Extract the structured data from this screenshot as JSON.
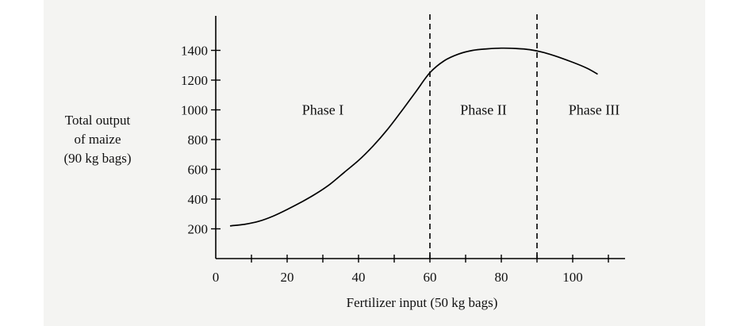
{
  "chart_data": {
    "type": "line",
    "xlabel": "Fertilizer input (50 kg bags)",
    "ylabel": [
      "Total output",
      "of maize",
      "(90 kg bags)"
    ],
    "xlim": [
      0,
      120
    ],
    "ylim": [
      0,
      1500
    ],
    "xticks": [
      0,
      20,
      40,
      60,
      80,
      100
    ],
    "yticks": [
      200,
      400,
      600,
      800,
      1000,
      1200,
      1400
    ],
    "grid": false,
    "series": [
      {
        "x": [
          4,
          8,
          12,
          16,
          20,
          24,
          28,
          32,
          36,
          40,
          44,
          48,
          52,
          56,
          60,
          64,
          68,
          72,
          76,
          80,
          84,
          88,
          92,
          96,
          100,
          104,
          107
        ],
        "y": [
          220,
          230,
          250,
          285,
          330,
          380,
          435,
          500,
          580,
          660,
          755,
          865,
          990,
          1120,
          1250,
          1330,
          1375,
          1400,
          1410,
          1415,
          1413,
          1405,
          1385,
          1355,
          1320,
          1280,
          1240
        ]
      }
    ],
    "phase_boundaries": [
      60,
      90
    ],
    "phases": [
      {
        "label": "Phase I",
        "x": 30
      },
      {
        "label": "Phase II",
        "x": 75
      },
      {
        "label": "Phase III",
        "x": 106
      }
    ],
    "colors": {
      "line": "#000000",
      "background": "#f4f4f2"
    }
  }
}
